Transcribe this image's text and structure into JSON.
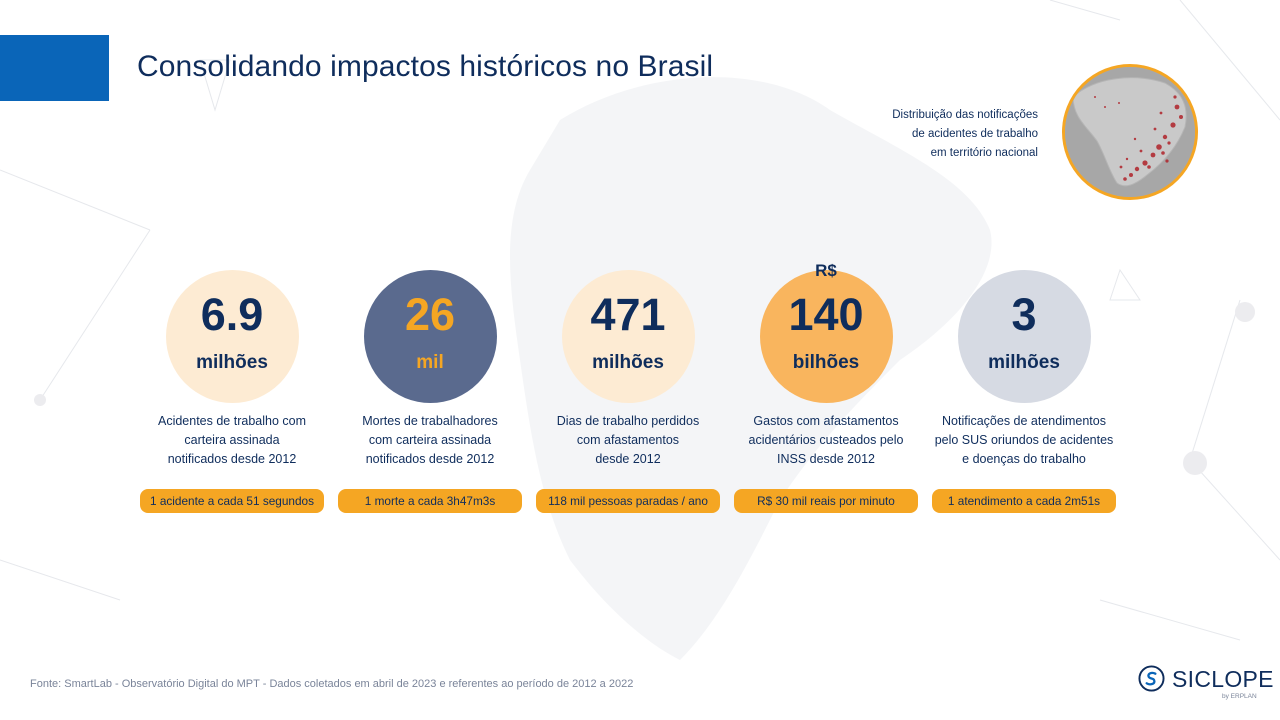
{
  "title": "Consolidando impactos históricos no Brasil",
  "map_caption": {
    "lines": [
      "Distribuição das notificações",
      "de acidentes de trabalho",
      "em território nacional"
    ]
  },
  "stats": [
    {
      "prefix": "",
      "value": "6.9",
      "unit": "milhões",
      "description": [
        "Acidentes de trabalho com",
        "carteira assinada",
        "notificados desde 2012"
      ],
      "highlight": "1 acidente a cada 51 segundos"
    },
    {
      "prefix": "",
      "value": "26",
      "unit": "mil",
      "description": [
        "Mortes de trabalhadores",
        "com carteira assinada",
        "notificados desde 2012"
      ],
      "highlight": "1 morte a cada 3h47m3s"
    },
    {
      "prefix": "",
      "value": "471",
      "unit": "milhões",
      "description": [
        "Dias de trabalho perdidos",
        "com afastamentos",
        "desde 2012"
      ],
      "highlight": "118 mil pessoas paradas / ano"
    },
    {
      "prefix": "R$",
      "value": "140",
      "unit": "bilhões",
      "description": [
        "Gastos com afastamentos",
        "acidentários custeados pelo",
        "INSS desde 2012"
      ],
      "highlight": "R$ 30 mil reais por minuto"
    },
    {
      "prefix": "",
      "value": "3",
      "unit": "milhões",
      "description": [
        "Notificações de atendimentos",
        "pelo SUS oriundos de acidentes",
        "e doenças do trabalho"
      ],
      "highlight": "1 atendimento a cada 2m51s"
    }
  ],
  "source": "Fonte: SmartLab - Observatório Digital do MPT - Dados coletados em abril de 2023 e referentes ao período de 2012 a 2022",
  "logo": {
    "name": "SICLOPE",
    "byline": "by ERPLAN"
  },
  "colors": {
    "accent_blue": "#0a65b8",
    "navy": "#0f2d5c",
    "orange": "#f5a623",
    "slate": "#5a6a8e"
  }
}
